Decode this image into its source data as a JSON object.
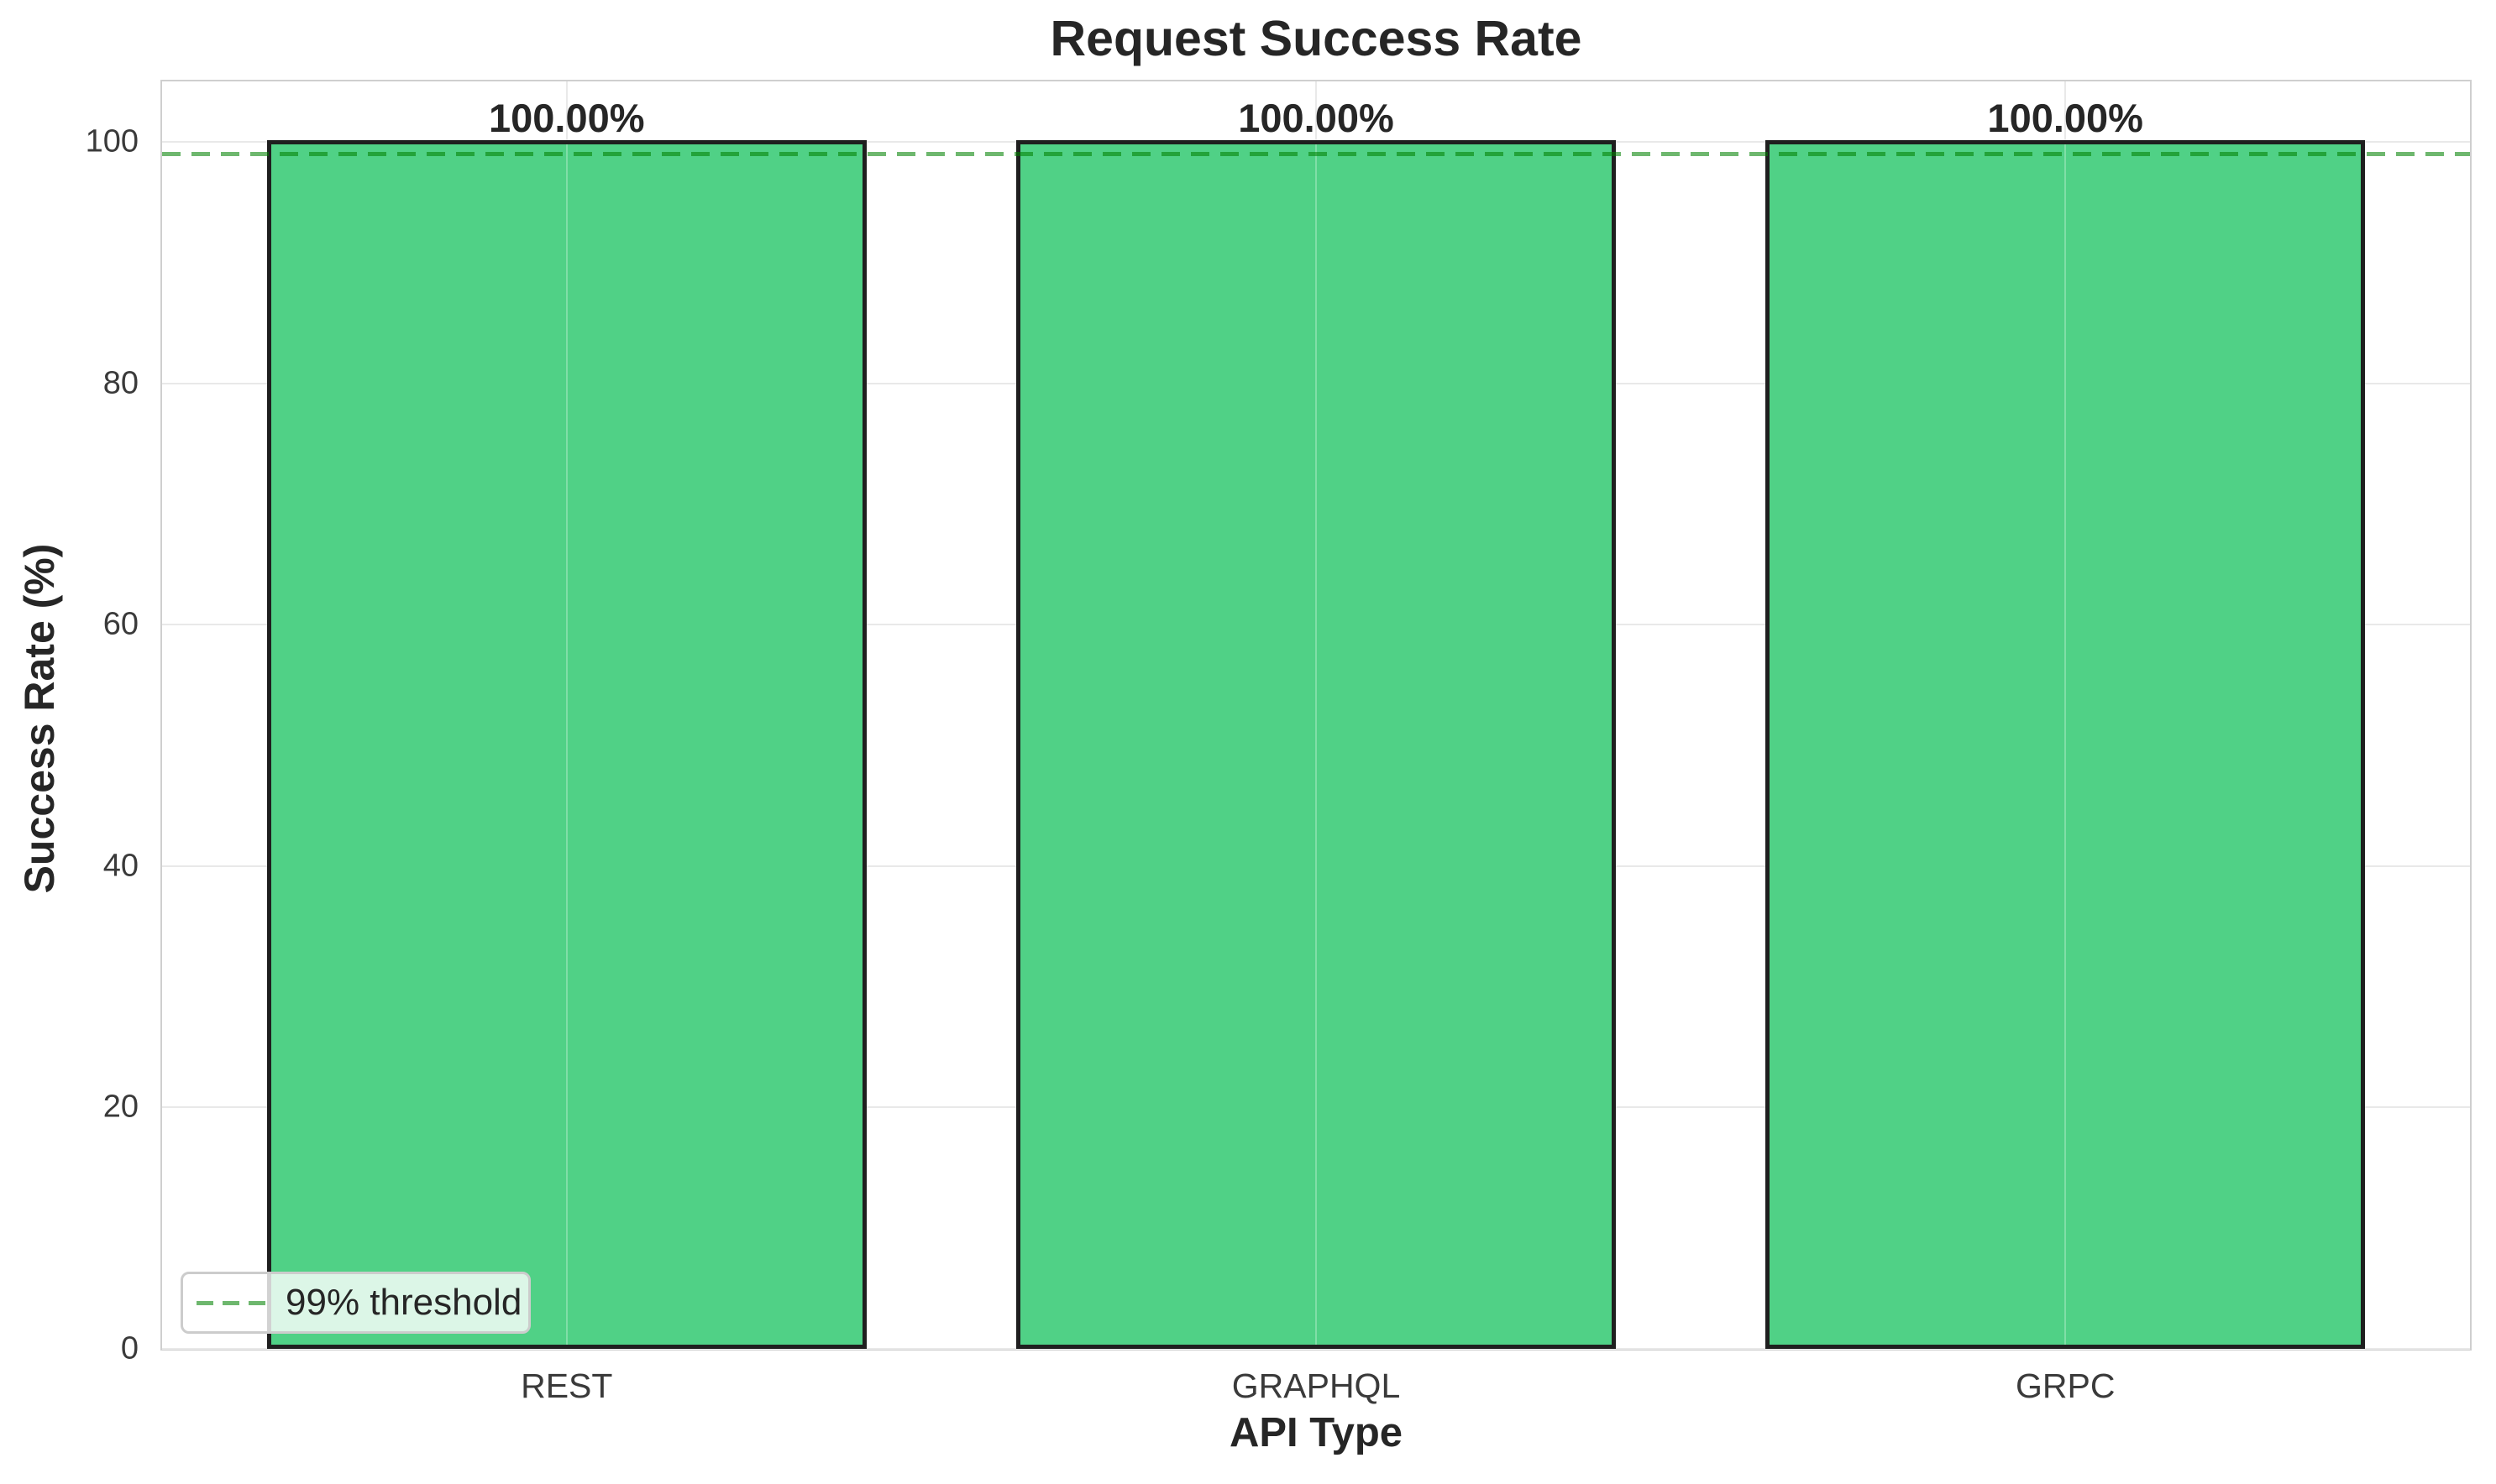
{
  "chart_data": {
    "type": "bar",
    "title": "Request Success Rate",
    "xlabel": "API Type",
    "ylabel": "Success Rate (%)",
    "categories": [
      "REST",
      "GRAPHQL",
      "GRPC"
    ],
    "values": [
      100,
      100,
      100
    ],
    "bar_labels": [
      "100.00%",
      "100.00%",
      "100.00%"
    ],
    "yticks": [
      0,
      20,
      40,
      60,
      80,
      100
    ],
    "ylim": [
      0,
      105
    ],
    "xlim": [
      -0.54,
      2.54
    ],
    "bar_width": 0.8,
    "threshold_value": 99,
    "legend": [
      "99% threshold"
    ],
    "grid": true,
    "legend_position": "lower left",
    "colors": {
      "bar_fill": "#50d186",
      "bar_edge": "#1f1f1f",
      "threshold_line": "rgba(0,128,0,0.57)",
      "grid": "#e9e9e9",
      "spine": "#cfcfcf",
      "text": "#262626"
    }
  }
}
